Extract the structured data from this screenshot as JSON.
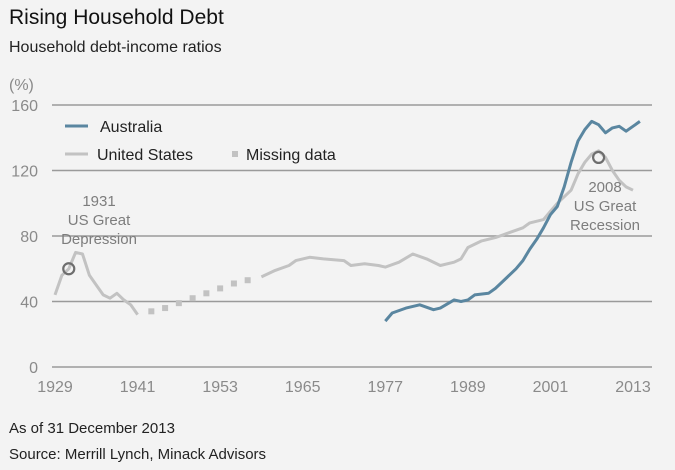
{
  "chart_data": {
    "type": "line",
    "title": "Rising Household Debt",
    "subtitle": "Household debt-income ratios",
    "ylabel": "(%)",
    "xlabel": "",
    "ylim": [
      0,
      160
    ],
    "xlim": [
      1929,
      2014
    ],
    "yticks": [
      "0",
      "40",
      "80",
      "120",
      "160"
    ],
    "xticks": [
      "1929",
      "1941",
      "1953",
      "1965",
      "1977",
      "1989",
      "2001",
      "2013"
    ],
    "grid": true,
    "legend_position": "top-left",
    "legend": [
      {
        "name": "Australia",
        "style": "solid",
        "color": "#5a86a0"
      },
      {
        "name": "United States",
        "style": "solid",
        "color": "#c2c2c2"
      },
      {
        "name": "Missing data",
        "style": "dotted",
        "color": "#c2c2c2"
      }
    ],
    "series": [
      {
        "name": "United States",
        "color": "#c2c2c2",
        "points": [
          [
            1929,
            44
          ],
          [
            1930,
            56
          ],
          [
            1931,
            60
          ],
          [
            1932,
            70
          ],
          [
            1933,
            69
          ],
          [
            1934,
            56
          ],
          [
            1935,
            50
          ],
          [
            1936,
            44
          ],
          [
            1937,
            42
          ],
          [
            1938,
            45
          ],
          [
            1939,
            41
          ],
          [
            1940,
            38
          ],
          [
            1941,
            32
          ]
        ]
      },
      {
        "name": "Missing data",
        "color": "#c2c2c2",
        "points": [
          [
            1943,
            34
          ],
          [
            1945,
            36
          ],
          [
            1947,
            39
          ],
          [
            1949,
            42
          ],
          [
            1951,
            45
          ],
          [
            1953,
            48
          ],
          [
            1955,
            51
          ],
          [
            1957,
            53
          ]
        ]
      },
      {
        "name": "United States",
        "color": "#c2c2c2",
        "points": [
          [
            1959,
            55
          ],
          [
            1961,
            59
          ],
          [
            1963,
            62
          ],
          [
            1964,
            65
          ],
          [
            1966,
            67
          ],
          [
            1968,
            66
          ],
          [
            1971,
            65
          ],
          [
            1972,
            62
          ],
          [
            1974,
            63
          ],
          [
            1976,
            62
          ],
          [
            1977,
            61
          ],
          [
            1979,
            64
          ],
          [
            1981,
            69
          ],
          [
            1983,
            66
          ],
          [
            1985,
            62
          ],
          [
            1987,
            64
          ],
          [
            1988,
            66
          ],
          [
            1989,
            73
          ],
          [
            1991,
            77
          ],
          [
            1993,
            79
          ],
          [
            1995,
            82
          ],
          [
            1997,
            85
          ],
          [
            1998,
            88
          ],
          [
            2000,
            90
          ],
          [
            2001,
            95
          ],
          [
            2002,
            100
          ],
          [
            2004,
            108
          ],
          [
            2005,
            118
          ],
          [
            2006,
            125
          ],
          [
            2007,
            130
          ],
          [
            2008,
            132
          ],
          [
            2009,
            128
          ],
          [
            2010,
            120
          ],
          [
            2011,
            114
          ],
          [
            2012,
            110
          ],
          [
            2013,
            108
          ]
        ]
      },
      {
        "name": "Australia",
        "color": "#5a86a0",
        "points": [
          [
            1977,
            28
          ],
          [
            1978,
            33
          ],
          [
            1980,
            36
          ],
          [
            1982,
            38
          ],
          [
            1984,
            35
          ],
          [
            1985,
            36
          ],
          [
            1987,
            41
          ],
          [
            1988,
            40
          ],
          [
            1989,
            41
          ],
          [
            1990,
            44
          ],
          [
            1992,
            45
          ],
          [
            1993,
            48
          ],
          [
            1994,
            52
          ],
          [
            1996,
            60
          ],
          [
            1997,
            65
          ],
          [
            1998,
            72
          ],
          [
            1999,
            78
          ],
          [
            2000,
            85
          ],
          [
            2001,
            93
          ],
          [
            2002,
            98
          ],
          [
            2003,
            110
          ],
          [
            2004,
            125
          ],
          [
            2005,
            138
          ],
          [
            2006,
            145
          ],
          [
            2007,
            150
          ],
          [
            2008,
            148
          ],
          [
            2009,
            143
          ],
          [
            2010,
            146
          ],
          [
            2011,
            147
          ],
          [
            2012,
            144
          ],
          [
            2013,
            147
          ],
          [
            2014,
            150
          ]
        ]
      }
    ],
    "annotations": [
      {
        "lines": [
          "1931",
          "US Great",
          "Depression"
        ],
        "x": 1931,
        "y": 60
      },
      {
        "lines": [
          "2008",
          "US Great",
          "Recession"
        ],
        "x": 2008,
        "y": 128
      }
    ]
  },
  "footer": {
    "as_of": "As of 31 December 2013",
    "source": "Source: Merrill Lynch, Minack Advisors"
  }
}
